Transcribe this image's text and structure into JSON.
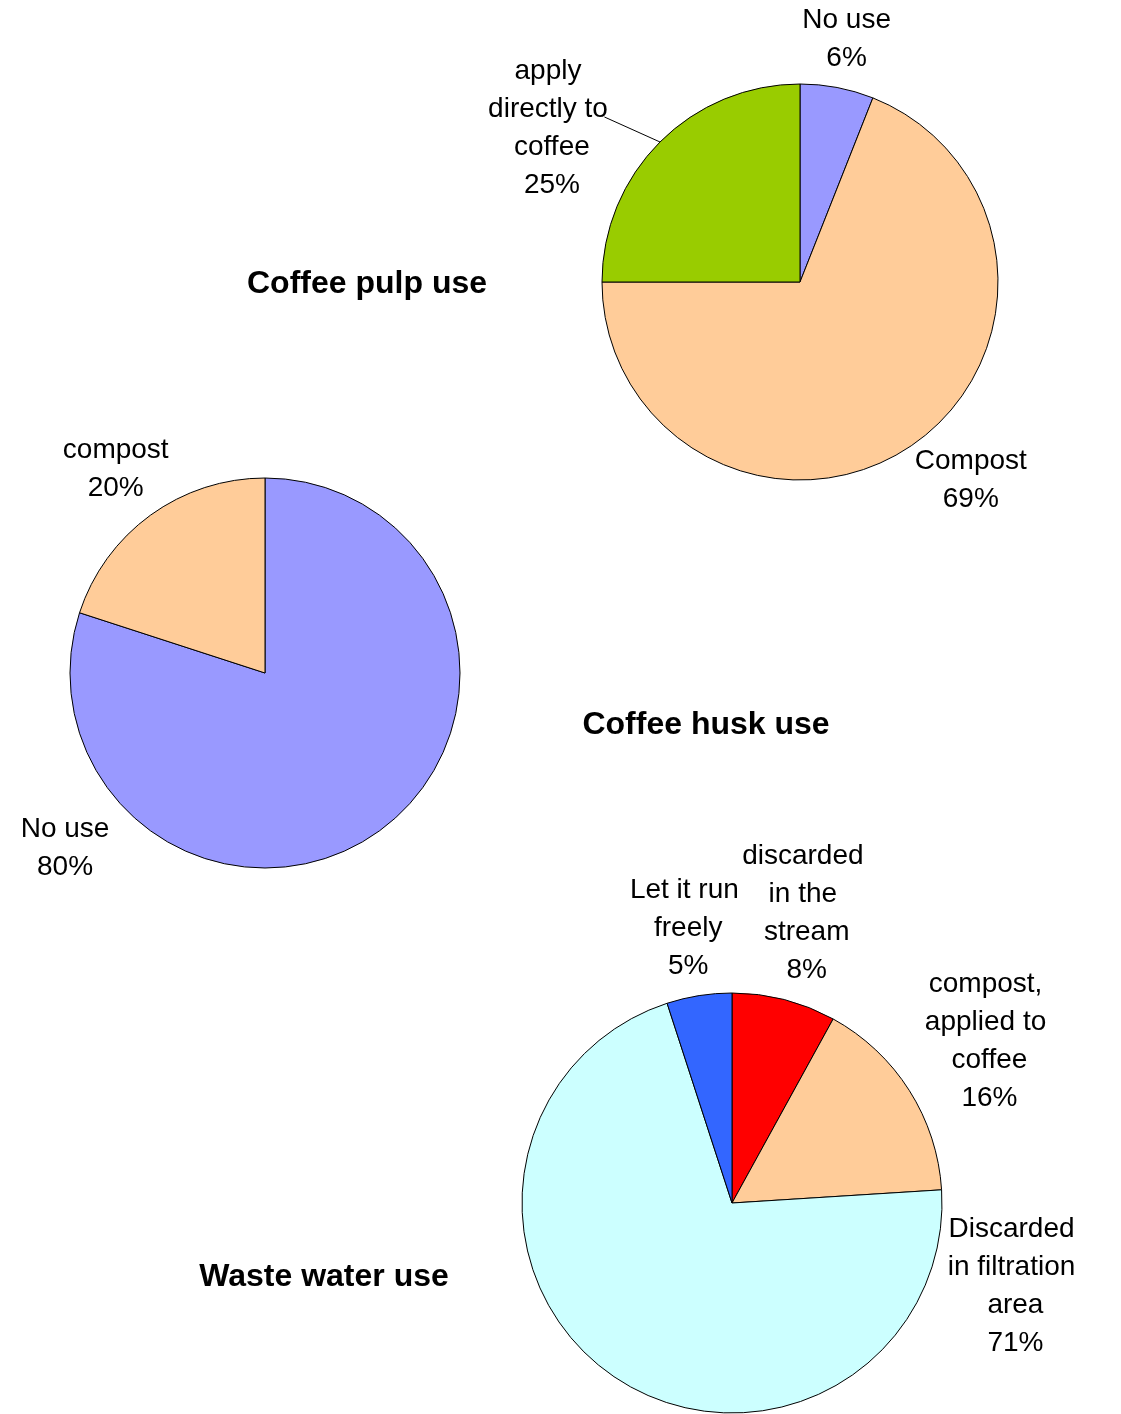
{
  "chart_data": [
    {
      "type": "pie",
      "title": "Coffee pulp use",
      "categories": [
        "No use",
        "Compost",
        "apply directly to coffee"
      ],
      "values": [
        6,
        69,
        25
      ],
      "colors": [
        "#9999ff",
        "#ffcc99",
        "#99cc00"
      ],
      "value_labels": [
        "6%",
        "69%",
        "25%"
      ]
    },
    {
      "type": "pie",
      "title": "Coffee husk use",
      "categories": [
        "No use",
        "compost"
      ],
      "values": [
        80,
        20
      ],
      "colors": [
        "#9999ff",
        "#ffcc99"
      ],
      "value_labels": [
        "80%",
        "20%"
      ]
    },
    {
      "type": "pie",
      "title": "Waste water use",
      "categories": [
        "discarded in the stream",
        "compost, applied to coffee",
        "Discarded in filtration area",
        "Let it run freely"
      ],
      "values": [
        8,
        16,
        71,
        5
      ],
      "colors": [
        "#ff0000",
        "#ffcc99",
        "#ccffff",
        "#3366ff"
      ],
      "value_labels": [
        "8%",
        "16%",
        "71%",
        "5%"
      ]
    }
  ]
}
